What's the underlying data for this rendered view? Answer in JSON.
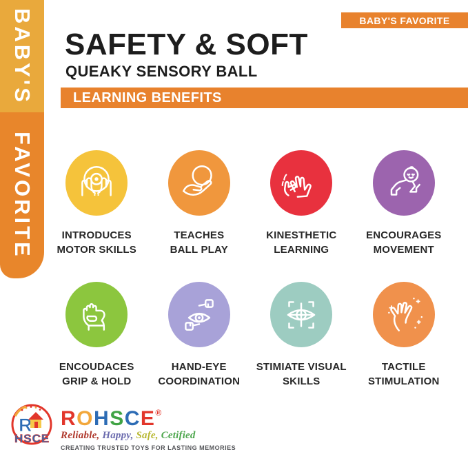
{
  "theme": {
    "ribbon_top_color": "#E9A93C",
    "ribbon_bottom_color": "#E8862B",
    "accent_orange": "#E8822D",
    "text_dark": "#1d1d1d"
  },
  "ribbon": {
    "top_label": "BABY'S",
    "bottom_label": "FAVORITE"
  },
  "badge": {
    "label": "BABY'S FAVORITE"
  },
  "header": {
    "title": "SAFETY & SOFT",
    "subtitle": "QUEAKY SENSORY BALL"
  },
  "section_bar": {
    "label": "LEARNING BENEFITS"
  },
  "benefits": {
    "items": [
      {
        "icon": "cradle-hands-ball-icon",
        "color": "#F5C33B",
        "label1": "INTRODUCES",
        "label2": "MOTOR SKILLS"
      },
      {
        "icon": "hand-holding-ball-icon",
        "color": "#F0973D",
        "label1": "TEACHES",
        "label2": "BALL PLAY"
      },
      {
        "icon": "clapping-hands-icon",
        "color": "#E8313E",
        "label1": "KINESTHETIC",
        "label2": "LEARNING"
      },
      {
        "icon": "crawling-baby-icon",
        "color": "#9C64AE",
        "label1": "ENCOURAGES",
        "label2": "MOVEMENT"
      },
      {
        "icon": "fist-grip-icon",
        "color": "#8CC63E",
        "label1": "ENCOUDACES",
        "label2": "GRIP & HOLD"
      },
      {
        "icon": "eye-with-hands-icon",
        "color": "#A8A2D8",
        "label1": "HAND-EYE",
        "label2": "COORDINATION"
      },
      {
        "icon": "eye-focus-icon",
        "color": "#9DCCC1",
        "label1": "STIMIATE VISUAL",
        "label2": "SKILLS"
      },
      {
        "icon": "open-hand-sparkles-icon",
        "color": "#F0914C",
        "label1": "TACTILE",
        "label2": "STIMULATION"
      }
    ]
  },
  "footer": {
    "brand": "ROHSCE",
    "registered_mark": "®",
    "brand_letter_colors": [
      "#E2362B",
      "#F2A73B",
      "#2D6CB5",
      "#3FA344",
      "#2D6CB5",
      "#E2362B"
    ],
    "tagline_parts": [
      {
        "text": "Reliable,",
        "color": "#B03A2E"
      },
      {
        "text": " Happy,",
        "color": "#6B6BAE"
      },
      {
        "text": " Safe,",
        "color": "#B8B832"
      },
      {
        "text": " Cetified",
        "color": "#4CA64C"
      }
    ],
    "slogan": "CREATING TRUSTED TOYS FOR LASTING MEMORIES"
  }
}
